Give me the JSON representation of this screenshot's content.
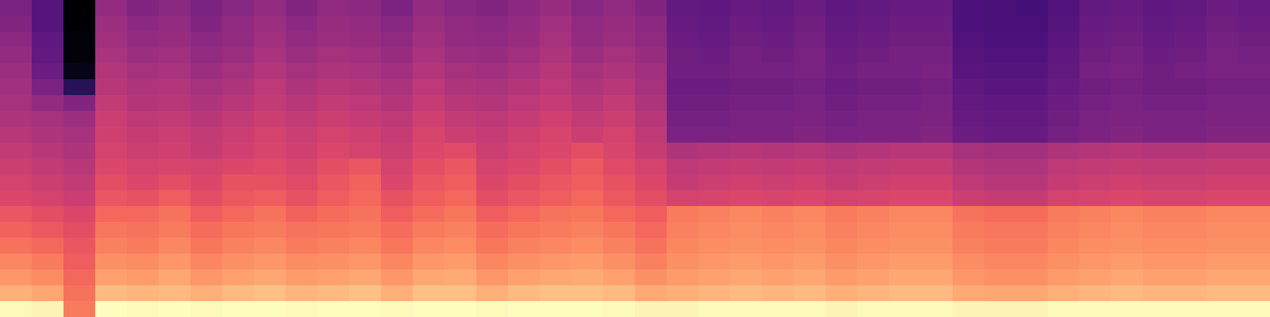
{
  "chart_data": {
    "type": "heatmap",
    "tick_labels": false,
    "cells": [
      [
        38,
        30,
        6,
        44,
        40,
        42,
        38,
        41,
        44,
        40,
        43,
        42,
        39,
        44,
        41,
        40,
        42,
        45,
        41,
        43,
        40,
        33,
        32,
        34,
        33,
        35,
        32,
        33,
        34,
        34,
        28,
        27,
        26,
        29,
        33,
        34,
        32,
        33,
        35,
        34
      ],
      [
        40,
        30,
        6,
        46,
        42,
        44,
        40,
        43,
        46,
        42,
        45,
        44,
        41,
        46,
        43,
        42,
        44,
        47,
        43,
        45,
        42,
        34,
        33,
        35,
        34,
        36,
        33,
        34,
        35,
        35,
        28,
        27,
        27,
        30,
        34,
        35,
        33,
        34,
        36,
        35
      ],
      [
        42,
        32,
        8,
        47,
        44,
        45,
        42,
        44,
        47,
        44,
        46,
        45,
        43,
        47,
        44,
        43,
        45,
        48,
        44,
        46,
        43,
        35,
        34,
        36,
        35,
        37,
        34,
        35,
        36,
        36,
        29,
        28,
        28,
        31,
        35,
        36,
        34,
        35,
        37,
        36
      ],
      [
        44,
        33,
        8,
        49,
        46,
        47,
        44,
        46,
        49,
        46,
        48,
        47,
        45,
        49,
        46,
        45,
        47,
        50,
        46,
        48,
        45,
        36,
        35,
        37,
        36,
        38,
        35,
        36,
        37,
        37,
        30,
        29,
        29,
        32,
        36,
        37,
        35,
        36,
        38,
        37
      ],
      [
        46,
        35,
        10,
        51,
        48,
        49,
        46,
        48,
        51,
        48,
        50,
        49,
        47,
        51,
        48,
        47,
        49,
        52,
        48,
        50,
        47,
        36,
        36,
        37,
        37,
        38,
        36,
        37,
        37,
        38,
        31,
        30,
        30,
        33,
        37,
        38,
        36,
        37,
        38,
        38
      ],
      [
        47,
        38,
        20,
        52,
        50,
        51,
        48,
        50,
        53,
        50,
        52,
        51,
        49,
        53,
        50,
        49,
        51,
        53,
        50,
        52,
        48,
        35,
        35,
        36,
        36,
        37,
        35,
        36,
        36,
        37,
        32,
        31,
        31,
        34,
        36,
        37,
        36,
        36,
        37,
        37
      ],
      [
        48,
        44,
        40,
        54,
        51,
        52,
        50,
        52,
        54,
        52,
        54,
        53,
        51,
        55,
        52,
        51,
        53,
        55,
        52,
        54,
        50,
        36,
        36,
        37,
        37,
        38,
        36,
        37,
        37,
        38,
        33,
        32,
        32,
        35,
        37,
        38,
        37,
        37,
        38,
        38
      ],
      [
        50,
        48,
        46,
        56,
        53,
        54,
        52,
        54,
        56,
        54,
        56,
        55,
        53,
        57,
        54,
        53,
        55,
        57,
        54,
        56,
        52,
        37,
        37,
        38,
        38,
        39,
        37,
        38,
        38,
        39,
        34,
        33,
        33,
        36,
        38,
        39,
        38,
        38,
        39,
        39
      ],
      [
        52,
        50,
        48,
        57,
        55,
        56,
        54,
        56,
        58,
        56,
        58,
        57,
        55,
        59,
        56,
        55,
        57,
        59,
        56,
        58,
        53,
        38,
        38,
        39,
        39,
        40,
        38,
        39,
        39,
        40,
        35,
        34,
        34,
        37,
        39,
        40,
        39,
        39,
        40,
        40
      ],
      [
        54,
        52,
        50,
        58,
        56,
        57,
        55,
        57,
        59,
        57,
        60,
        58,
        56,
        60,
        61,
        56,
        58,
        60,
        62,
        59,
        55,
        50,
        51,
        52,
        51,
        52,
        50,
        51,
        52,
        52,
        48,
        47,
        47,
        50,
        51,
        52,
        51,
        51,
        52,
        52
      ],
      [
        56,
        54,
        52,
        60,
        58,
        59,
        58,
        60,
        61,
        59,
        62,
        64,
        58,
        62,
        64,
        58,
        60,
        62,
        65,
        61,
        58,
        53,
        54,
        55,
        54,
        55,
        53,
        54,
        55,
        55,
        51,
        50,
        50,
        53,
        54,
        55,
        54,
        54,
        55,
        55
      ],
      [
        58,
        56,
        54,
        62,
        60,
        62,
        60,
        63,
        63,
        61,
        64,
        67,
        60,
        64,
        66,
        60,
        62,
        64,
        66,
        63,
        60,
        55,
        56,
        57,
        56,
        57,
        55,
        56,
        57,
        57,
        53,
        52,
        52,
        55,
        56,
        57,
        56,
        56,
        57,
        57
      ],
      [
        60,
        58,
        56,
        64,
        63,
        66,
        62,
        65,
        66,
        63,
        66,
        68,
        63,
        66,
        68,
        62,
        64,
        66,
        68,
        65,
        62,
        58,
        59,
        60,
        59,
        60,
        58,
        59,
        60,
        60,
        56,
        55,
        55,
        58,
        59,
        60,
        59,
        59,
        60,
        60
      ],
      [
        64,
        62,
        60,
        68,
        68,
        70,
        66,
        68,
        70,
        67,
        69,
        70,
        66,
        69,
        71,
        66,
        68,
        70,
        71,
        68,
        66,
        72,
        73,
        74,
        73,
        74,
        72,
        73,
        74,
        74,
        70,
        69,
        69,
        72,
        73,
        74,
        73,
        73,
        74,
        74
      ],
      [
        67,
        65,
        62,
        71,
        70,
        72,
        69,
        71,
        72,
        70,
        71,
        72,
        69,
        72,
        73,
        69,
        71,
        72,
        73,
        71,
        68,
        73,
        74,
        75,
        74,
        75,
        73,
        74,
        75,
        75,
        72,
        71,
        71,
        73,
        74,
        75,
        74,
        74,
        75,
        75
      ],
      [
        70,
        68,
        64,
        73,
        72,
        74,
        71,
        73,
        74,
        72,
        73,
        74,
        71,
        74,
        75,
        71,
        73,
        74,
        75,
        73,
        70,
        74,
        75,
        76,
        75,
        76,
        74,
        75,
        76,
        76,
        73,
        72,
        72,
        74,
        75,
        76,
        75,
        75,
        76,
        76
      ],
      [
        74,
        72,
        66,
        76,
        75,
        77,
        74,
        76,
        77,
        75,
        76,
        77,
        74,
        77,
        78,
        74,
        76,
        77,
        78,
        76,
        73,
        76,
        77,
        78,
        77,
        78,
        76,
        77,
        78,
        78,
        75,
        74,
        74,
        76,
        77,
        78,
        77,
        77,
        78,
        78
      ],
      [
        77,
        75,
        68,
        79,
        78,
        80,
        77,
        79,
        80,
        78,
        79,
        80,
        77,
        80,
        81,
        77,
        79,
        80,
        81,
        79,
        76,
        78,
        79,
        80,
        79,
        80,
        78,
        79,
        80,
        80,
        77,
        76,
        76,
        78,
        79,
        80,
        79,
        79,
        80,
        80
      ],
      [
        82,
        80,
        70,
        84,
        83,
        84,
        82,
        84,
        85,
        83,
        84,
        85,
        82,
        85,
        85,
        82,
        84,
        85,
        85,
        84,
        81,
        82,
        83,
        84,
        83,
        84,
        82,
        83,
        84,
        84,
        81,
        80,
        80,
        82,
        83,
        84,
        83,
        83,
        84,
        84
      ],
      [
        96,
        95,
        72,
        97,
        96,
        97,
        96,
        97,
        97,
        96,
        97,
        97,
        96,
        97,
        97,
        96,
        97,
        97,
        97,
        96,
        95,
        95,
        96,
        96,
        96,
        96,
        95,
        96,
        96,
        96,
        95,
        95,
        95,
        96,
        96,
        96,
        96,
        96,
        96,
        96
      ]
    ]
  }
}
